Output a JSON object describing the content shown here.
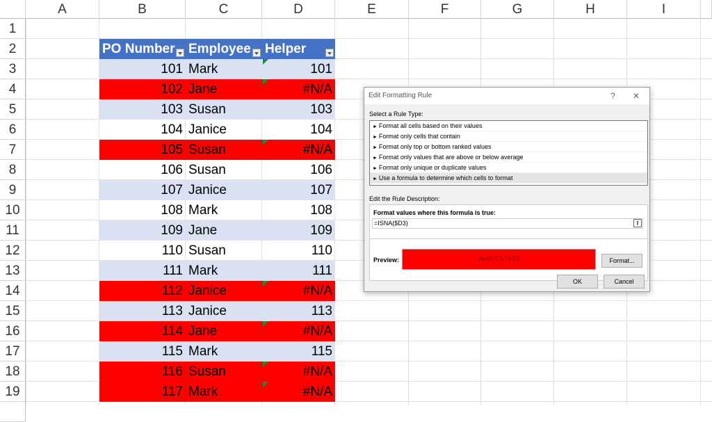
{
  "columns": [
    "A",
    "B",
    "C",
    "D",
    "E",
    "F",
    "G",
    "H",
    "I"
  ],
  "rows": [
    "1",
    "2",
    "3",
    "4",
    "5",
    "6",
    "7",
    "8",
    "9",
    "10",
    "11",
    "12",
    "13",
    "14",
    "15",
    "16",
    "17",
    "18",
    "19"
  ],
  "table": {
    "headers": [
      "PO Number",
      "Employee",
      "Helper"
    ],
    "data": [
      {
        "po": "101",
        "emp": "Mark",
        "helper": "101",
        "error": false
      },
      {
        "po": "102",
        "emp": "Jane",
        "helper": "#N/A",
        "error": true
      },
      {
        "po": "103",
        "emp": "Susan",
        "helper": "103",
        "error": false
      },
      {
        "po": "104",
        "emp": "Janice",
        "helper": "104",
        "error": false
      },
      {
        "po": "105",
        "emp": "Susan",
        "helper": "#N/A",
        "error": true
      },
      {
        "po": "106",
        "emp": "Susan",
        "helper": "106",
        "error": false
      },
      {
        "po": "107",
        "emp": "Janice",
        "helper": "107",
        "error": false
      },
      {
        "po": "108",
        "emp": "Mark",
        "helper": "108",
        "error": false
      },
      {
        "po": "109",
        "emp": "Jane",
        "helper": "109",
        "error": false
      },
      {
        "po": "110",
        "emp": "Susan",
        "helper": "110",
        "error": false
      },
      {
        "po": "111",
        "emp": "Mark",
        "helper": "111",
        "error": false
      },
      {
        "po": "112",
        "emp": "Janice",
        "helper": "#N/A",
        "error": true
      },
      {
        "po": "113",
        "emp": "Janice",
        "helper": "113",
        "error": false
      },
      {
        "po": "114",
        "emp": "Jane",
        "helper": "#N/A",
        "error": true
      },
      {
        "po": "115",
        "emp": "Mark",
        "helper": "115",
        "error": false
      },
      {
        "po": "116",
        "emp": "Susan",
        "helper": "#N/A",
        "error": true
      },
      {
        "po": "117",
        "emp": "Mark",
        "helper": "#N/A",
        "error": true
      }
    ],
    "header_color": "#4472c4",
    "band_color": "#d9e1f2",
    "highlight_color": "#ff0000"
  },
  "dialog": {
    "title": "Edit Formatting Rule",
    "help": "?",
    "close": "✕",
    "select_label": "Select a Rule Type:",
    "rule_types": [
      "Format all cells based on their values",
      "Format only cells that contain",
      "Format only top or bottom ranked values",
      "Format only values that are above or below average",
      "Format only unique or duplicate values",
      "Use a formula to determine which cells to format"
    ],
    "selected_index": 5,
    "edit_label": "Edit the Rule Description:",
    "formula_label": "Format values where this formula is true:",
    "formula": "=ISNA($D3)",
    "preview_label": "Preview:",
    "preview_text": "AaBbCcYyZz",
    "format_button": "Format...",
    "ok": "OK",
    "cancel": "Cancel"
  }
}
